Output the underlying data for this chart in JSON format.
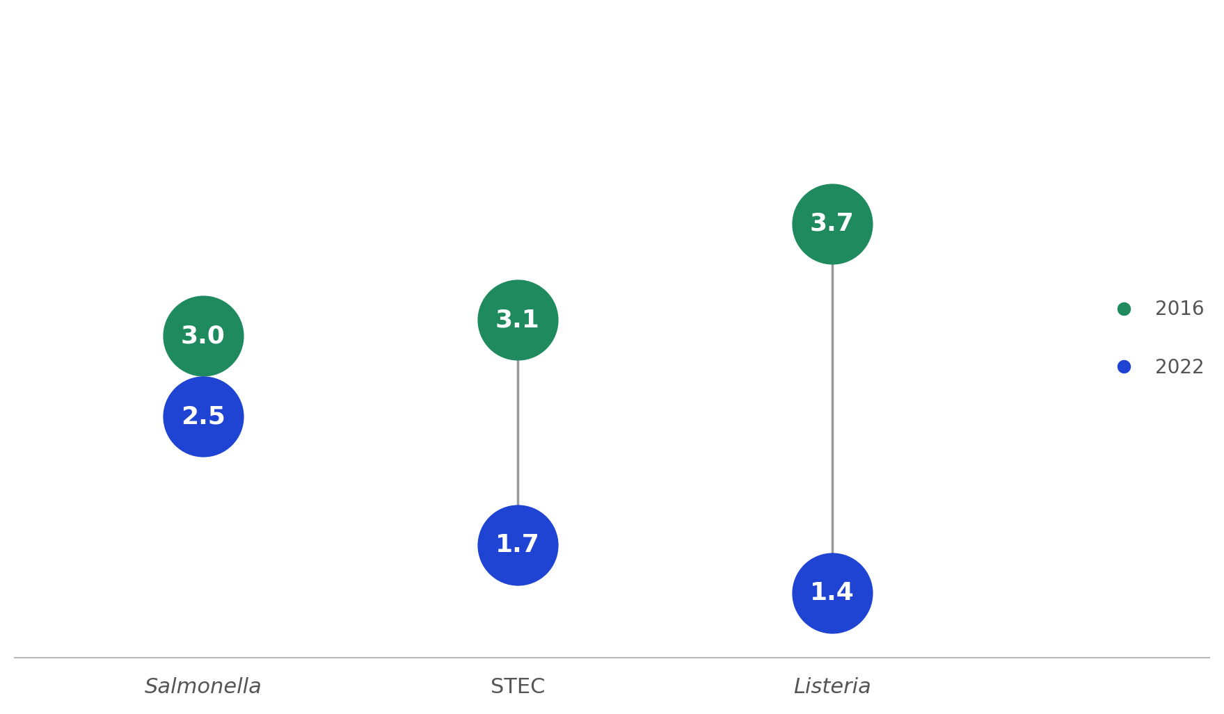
{
  "categories": [
    "Salmonella",
    "STEC",
    "Listeria"
  ],
  "categories_italic": [
    true,
    false,
    true
  ],
  "values_2016": [
    3.0,
    3.1,
    3.7
  ],
  "values_2022": [
    2.5,
    1.7,
    1.4
  ],
  "color_2016": "#1f8a5e",
  "color_2022": "#1f44d4",
  "line_color": "#999999",
  "background_color": "#ffffff",
  "marker_size": 7000,
  "value_fontsize": 26,
  "tick_fontsize": 22,
  "legend_fontsize": 20,
  "legend_labels": [
    "2016",
    "2022"
  ],
  "ylim": [
    0.8,
    5.0
  ],
  "xlim": [
    -0.6,
    3.2
  ],
  "x_positions": [
    0,
    1,
    2
  ]
}
